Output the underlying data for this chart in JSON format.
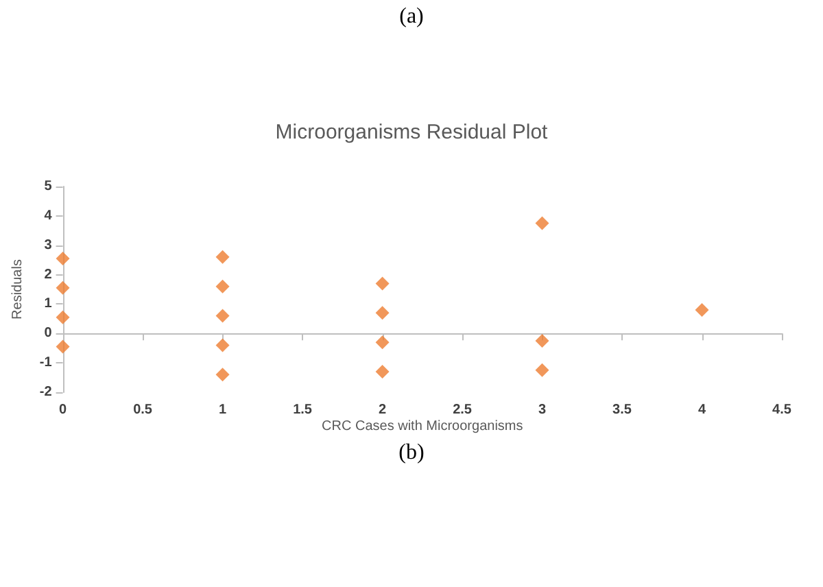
{
  "chart_data": {
    "type": "scatter",
    "title": "Microorganisms Residual Plot",
    "xlabel": "CRC Cases with Microorganisms",
    "ylabel": "Residuals",
    "annotations": [
      "(a)",
      "(b)"
    ],
    "x": [
      0,
      0,
      0,
      0,
      1,
      1,
      1,
      1,
      1,
      2,
      2,
      2,
      2,
      3,
      3,
      3,
      4
    ],
    "values": [
      2.55,
      1.55,
      0.55,
      -0.45,
      2.6,
      1.6,
      0.6,
      -0.4,
      -1.4,
      1.7,
      0.7,
      -0.3,
      -1.3,
      3.75,
      -0.25,
      -1.25,
      0.8
    ],
    "color": "#ed7d31",
    "marker": "diamond",
    "xlim": [
      0,
      4.5
    ],
    "xticks": [
      0,
      0.5,
      1,
      1.5,
      2,
      2.5,
      3,
      3.5,
      4,
      4.5
    ],
    "ylim": [
      -2,
      5
    ],
    "yticks": [
      -2,
      -1,
      0,
      1,
      2,
      3,
      4,
      5
    ]
  }
}
